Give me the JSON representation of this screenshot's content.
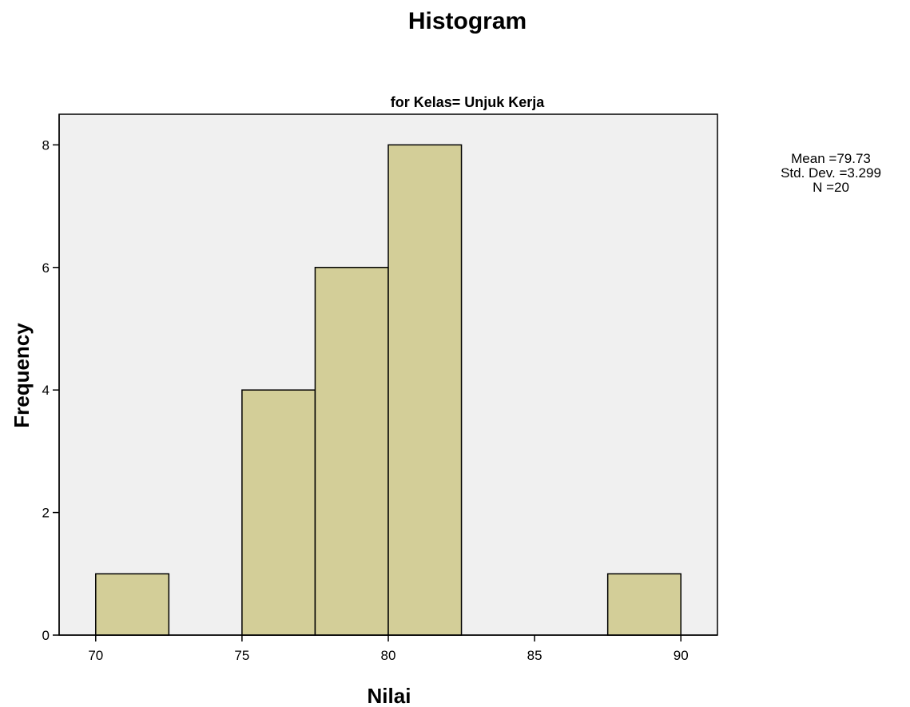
{
  "chart_data": {
    "type": "bar",
    "title": "Histogram",
    "subtitle": "for Kelas= Unjuk Kerja",
    "xlabel": "Nilai",
    "ylabel": "Frequency",
    "bins": [
      {
        "start": 70,
        "end": 72.5,
        "count": 1
      },
      {
        "start": 72.5,
        "end": 75,
        "count": 0
      },
      {
        "start": 75,
        "end": 77.5,
        "count": 4
      },
      {
        "start": 77.5,
        "end": 80,
        "count": 6
      },
      {
        "start": 80,
        "end": 82.5,
        "count": 8
      },
      {
        "start": 82.5,
        "end": 85,
        "count": 0
      },
      {
        "start": 85,
        "end": 87.5,
        "count": 0
      },
      {
        "start": 87.5,
        "end": 90,
        "count": 1
      }
    ],
    "xlim": [
      68.75,
      91.25
    ],
    "ylim": [
      0,
      8.5
    ],
    "x_ticks": [
      70,
      75,
      80,
      85,
      90
    ],
    "y_ticks": [
      0,
      2,
      4,
      6,
      8
    ],
    "stats": {
      "mean": "Mean =79.73",
      "std_dev": "Std. Dev. =3.299",
      "n": "N =20"
    },
    "grid": false,
    "colors": {
      "bar_fill": "#d3ce98",
      "bar_stroke": "#000000",
      "plot_background": "#f0f0f0",
      "axis": "#000000"
    }
  }
}
